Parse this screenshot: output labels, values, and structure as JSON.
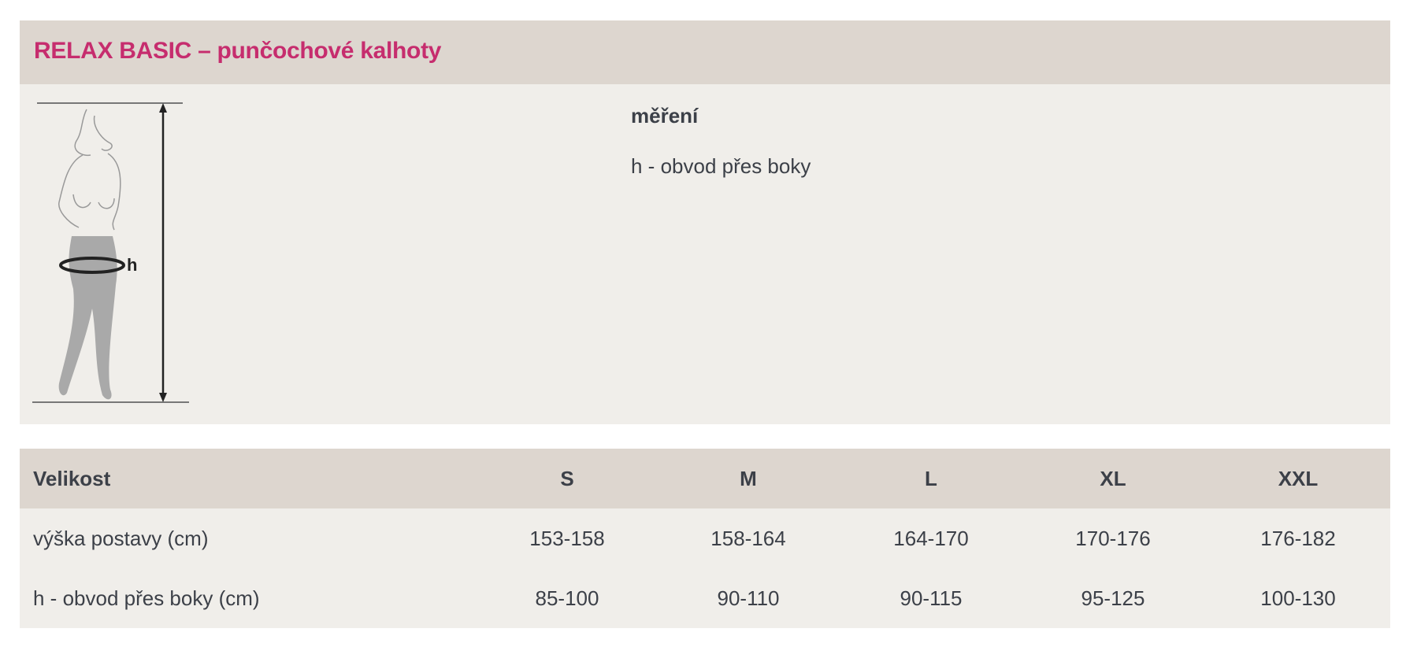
{
  "product": {
    "title": "RELAX BASIC – punčochové kalhoty"
  },
  "measurement": {
    "heading": "měření",
    "items": [
      "h - obvod přes boky"
    ],
    "figure_label": "h"
  },
  "table": {
    "header": {
      "label": "Velikost",
      "sizes": [
        "S",
        "M",
        "L",
        "XL",
        "XXL"
      ]
    },
    "rows": [
      {
        "label": "výška postavy (cm)",
        "values": [
          "153-158",
          "158-164",
          "164-170",
          "170-176",
          "176-182"
        ]
      },
      {
        "label": "h - obvod přes boky (cm)",
        "values": [
          "85-100",
          "90-110",
          "90-115",
          "95-125",
          "100-130"
        ]
      }
    ]
  },
  "colors": {
    "accent": "#c62d6e",
    "header_bg": "#ddd6cf",
    "body_bg": "#f0eeea",
    "text": "#3c4048"
  }
}
